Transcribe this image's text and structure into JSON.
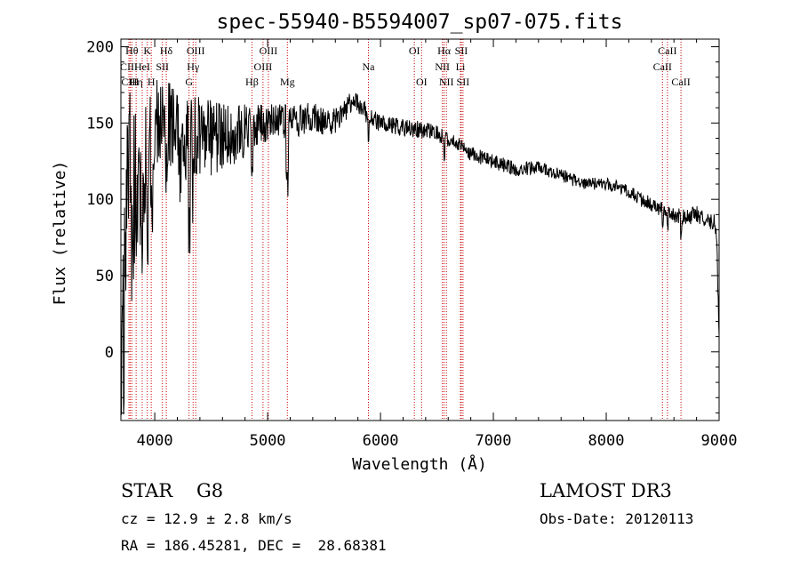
{
  "chart_data": {
    "type": "line",
    "title": "spec-55940-B5594007_sp07-075.fits",
    "xlabel": "Wavelength (Å)",
    "ylabel": "Flux (relative)",
    "xlim": [
      3700,
      9000
    ],
    "ylim": [
      -45,
      205
    ],
    "x_ticks": [
      4000,
      5000,
      6000,
      7000,
      8000,
      9000
    ],
    "y_ticks": [
      0,
      50,
      100,
      150,
      200
    ],
    "line_color": "#000000",
    "marker_color": "#cc0000",
    "continuum": [
      [
        3700,
        20
      ],
      [
        3720,
        40
      ],
      [
        3740,
        80
      ],
      [
        3760,
        110
      ],
      [
        3780,
        120
      ],
      [
        3800,
        100
      ],
      [
        3830,
        110
      ],
      [
        3860,
        110
      ],
      [
        3900,
        120
      ],
      [
        3950,
        140
      ],
      [
        4000,
        150
      ],
      [
        4050,
        155
      ],
      [
        4100,
        152
      ],
      [
        4150,
        148
      ],
      [
        4200,
        145
      ],
      [
        4250,
        140
      ],
      [
        4300,
        138
      ],
      [
        4350,
        140
      ],
      [
        4400,
        142
      ],
      [
        4500,
        140
      ],
      [
        4600,
        140
      ],
      [
        4700,
        142
      ],
      [
        4800,
        145
      ],
      [
        4900,
        150
      ],
      [
        5000,
        150
      ],
      [
        5100,
        152
      ],
      [
        5200,
        150
      ],
      [
        5300,
        152
      ],
      [
        5400,
        155
      ],
      [
        5500,
        150
      ],
      [
        5600,
        152
      ],
      [
        5700,
        160
      ],
      [
        5750,
        163
      ],
      [
        5800,
        162
      ],
      [
        5900,
        155
      ],
      [
        6000,
        150
      ],
      [
        6100,
        148
      ],
      [
        6200,
        147
      ],
      [
        6300,
        146
      ],
      [
        6400,
        145
      ],
      [
        6500,
        143
      ],
      [
        6600,
        140
      ],
      [
        6700,
        135
      ],
      [
        6800,
        130
      ],
      [
        6900,
        127
      ],
      [
        7000,
        125
      ],
      [
        7100,
        122
      ],
      [
        7200,
        120
      ],
      [
        7300,
        120
      ],
      [
        7400,
        122
      ],
      [
        7500,
        118
      ],
      [
        7600,
        116
      ],
      [
        7700,
        113
      ],
      [
        7800,
        110
      ],
      [
        7900,
        110
      ],
      [
        8000,
        110
      ],
      [
        8100,
        108
      ],
      [
        8200,
        105
      ],
      [
        8300,
        100
      ],
      [
        8400,
        97
      ],
      [
        8500,
        93
      ],
      [
        8600,
        90
      ],
      [
        8700,
        88
      ],
      [
        8800,
        90
      ],
      [
        8900,
        87
      ],
      [
        8960,
        85
      ],
      [
        8980,
        70
      ],
      [
        9000,
        10
      ]
    ],
    "features": [
      [
        3700,
        3730,
        -50
      ],
      [
        3795,
        3815,
        -35
      ],
      [
        3830,
        3845,
        -45
      ],
      [
        3885,
        3900,
        -40
      ],
      [
        3925,
        3945,
        -60
      ],
      [
        3962,
        3980,
        -55
      ],
      [
        4095,
        4110,
        -30
      ],
      [
        4220,
        4235,
        -20
      ],
      [
        4298,
        4312,
        -80
      ],
      [
        4335,
        4345,
        -40
      ],
      [
        4855,
        4868,
        -25
      ],
      [
        5163,
        5185,
        -45
      ],
      [
        5890,
        5898,
        -25
      ],
      [
        6560,
        6568,
        -15
      ],
      [
        8495,
        8505,
        -15
      ],
      [
        8538,
        8548,
        -10
      ],
      [
        8660,
        8668,
        -12
      ]
    ],
    "noise_levels": [
      [
        3700,
        60
      ],
      [
        3900,
        45
      ],
      [
        4000,
        30
      ],
      [
        4300,
        30
      ],
      [
        4700,
        20
      ],
      [
        5000,
        12
      ],
      [
        6000,
        6
      ],
      [
        7000,
        5
      ],
      [
        8000,
        4
      ],
      [
        9000,
        6
      ]
    ],
    "lines": [
      {
        "label": "Hθ",
        "x": 3797,
        "row": 0
      },
      {
        "label": "CIII",
        "x": 3771,
        "row": 1
      },
      {
        "label": "CIII",
        "x": 3782,
        "row": 2
      },
      {
        "label": "Hη",
        "x": 3835,
        "row": 2
      },
      {
        "label": "K",
        "x": 3934,
        "row": 0
      },
      {
        "label": "HeI",
        "x": 3889,
        "row": 1
      },
      {
        "label": "H",
        "x": 3969,
        "row": 2
      },
      {
        "label": "Hδ",
        "x": 4102,
        "row": 0
      },
      {
        "label": "SII",
        "x": 4068,
        "row": 1
      },
      {
        "label": "OIII",
        "x": 4363,
        "row": 0
      },
      {
        "label": "Hγ",
        "x": 4340,
        "row": 1
      },
      {
        "label": "G",
        "x": 4304,
        "row": 2
      },
      {
        "label": "Hβ",
        "x": 4861,
        "row": 2
      },
      {
        "label": "OIII",
        "x": 5007,
        "row": 0
      },
      {
        "label": "OIII",
        "x": 4959,
        "row": 1
      },
      {
        "label": "Mg",
        "x": 5175,
        "row": 2
      },
      {
        "label": "Na",
        "x": 5893,
        "row": 1
      },
      {
        "label": "OI",
        "x": 6300,
        "row": 0
      },
      {
        "label": "OI",
        "x": 6364,
        "row": 2
      },
      {
        "label": "Hα",
        "x": 6563,
        "row": 0
      },
      {
        "label": "NII",
        "x": 6548,
        "row": 1
      },
      {
        "label": "NII",
        "x": 6584,
        "row": 2
      },
      {
        "label": "SII",
        "x": 6716,
        "row": 0
      },
      {
        "label": "Li",
        "x": 6708,
        "row": 1
      },
      {
        "label": "SII",
        "x": 6731,
        "row": 2
      },
      {
        "label": "CaII",
        "x": 8542,
        "row": 0
      },
      {
        "label": "CaII",
        "x": 8498,
        "row": 1
      },
      {
        "label": "CaII",
        "x": 8662,
        "row": 2
      }
    ]
  },
  "info": {
    "class": "STAR",
    "subclass": "G8",
    "survey": "LAMOST DR3",
    "cz": "cz = 12.9 ± 2.8 km/s",
    "obs_date": "Obs-Date: 20120113",
    "coords": "RA = 186.45281, DEC =  28.68381"
  }
}
